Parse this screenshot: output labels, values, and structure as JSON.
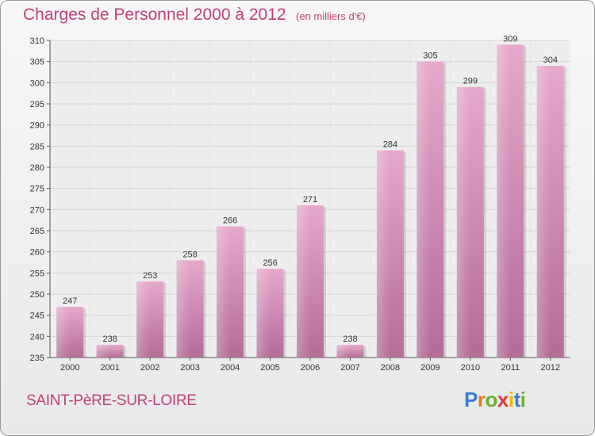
{
  "header": {
    "title": "Charges de Personnel 2000 à 2012",
    "subtitle": "(en milliers d'€)"
  },
  "footer": {
    "commune": "SAINT-PèRE-SUR-LOIRE",
    "logo_letters": [
      "P",
      "r",
      "o",
      "x",
      "i",
      "t",
      "i"
    ],
    "logo_colors": [
      "#3a7fd0",
      "#e87a1e",
      "#6ab02e",
      "#e03a3a",
      "#f0b400",
      "#3a7fd0",
      "#6ab02e"
    ]
  },
  "chart_data": {
    "type": "bar",
    "categories": [
      "2000",
      "2001",
      "2002",
      "2003",
      "2004",
      "2005",
      "2006",
      "2007",
      "2008",
      "2009",
      "2010",
      "2011",
      "2012"
    ],
    "values": [
      247,
      238,
      253,
      258,
      266,
      256,
      271,
      238,
      284,
      305,
      299,
      309,
      304
    ],
    "ylim": [
      235,
      310
    ],
    "yticks": [
      235,
      240,
      245,
      250,
      255,
      260,
      265,
      270,
      275,
      280,
      285,
      290,
      295,
      300,
      305,
      310
    ],
    "grid": true,
    "bar_color_top": "#e6a8cc",
    "bar_color_bottom": "#b46c97"
  }
}
